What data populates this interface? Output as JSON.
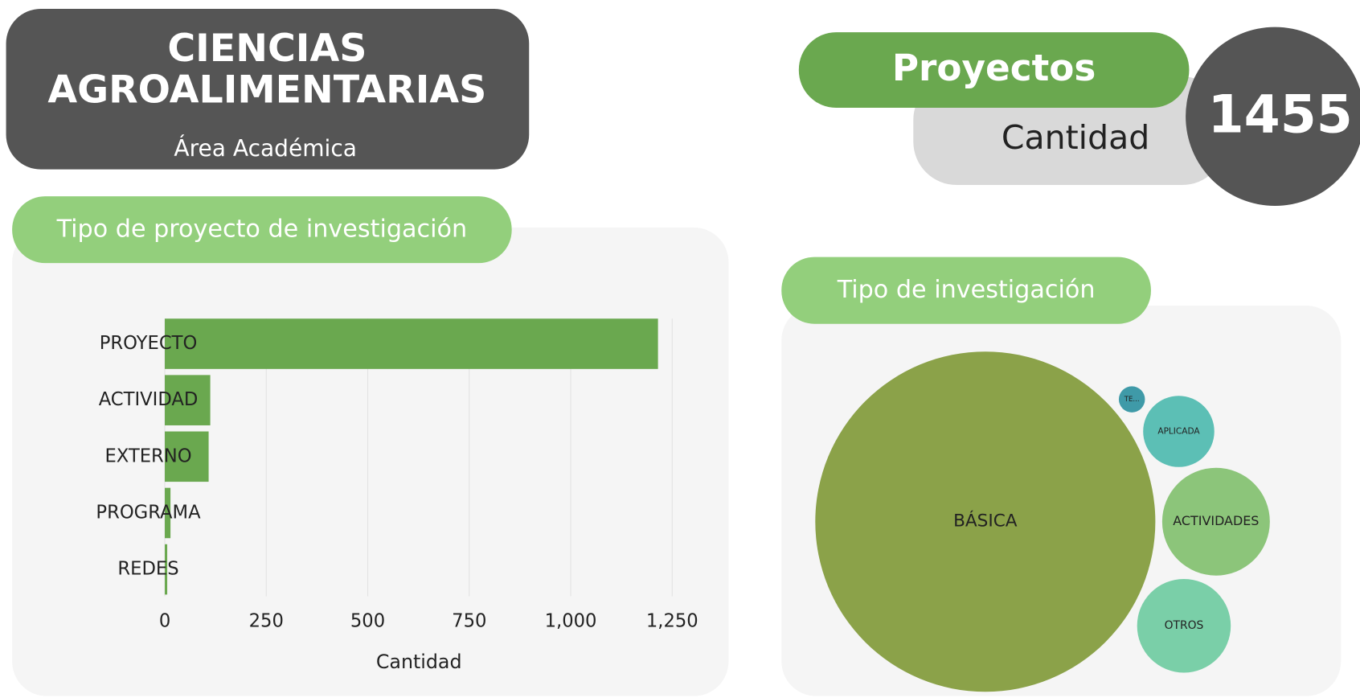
{
  "header": {
    "title_lines": [
      "CIENCIAS",
      "AGROALIMENTARIAS"
    ],
    "subtitle": "Área Académica"
  },
  "kpi": {
    "title": "Proyectos",
    "label": "Cantidad",
    "value": 1455
  },
  "chart_data": [
    {
      "type": "hbar",
      "title": "Tipo de proyecto de investigación",
      "categories": [
        "PROYECTO",
        "ACTIVIDAD",
        "EXTERNO",
        "PROGRAMA",
        "REDES"
      ],
      "values": [
        1215,
        112,
        108,
        14,
        6
      ],
      "color": "#6aa84f",
      "xlim": [
        0,
        1250
      ],
      "xticks": [
        0,
        250,
        500,
        750,
        {
          "value": 1000,
          "label": "1,000"
        },
        {
          "value": 1250,
          "label": "1,250"
        }
      ],
      "xlabel": "Cantidad",
      "grid": true
    },
    {
      "type": "bubble",
      "title": "Tipo de investigación",
      "categories": [
        "BÁSICA",
        "TE...",
        "APLICADA",
        "ACTIVIDADES",
        "OTROS"
      ],
      "values": [
        1187,
        7,
        52,
        119,
        90
      ],
      "colors": [
        "#8ba249",
        "#3f9aa8",
        "#5cbfb5",
        "#8cc57a",
        "#7acfa8"
      ]
    }
  ]
}
